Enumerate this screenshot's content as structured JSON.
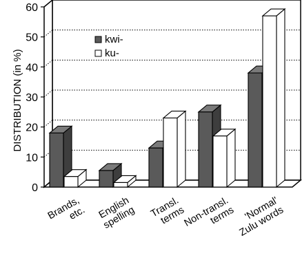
{
  "chart_data": {
    "type": "bar",
    "title": "",
    "ylabel": "DISTRIBUTION (in %)",
    "xlabel": "",
    "ylim": [
      0,
      60
    ],
    "yticks": [
      0,
      10,
      20,
      30,
      40,
      50,
      60
    ],
    "grid": "horizontal dotted",
    "legend_position": "top-left",
    "categories": [
      [
        "Brands,",
        "etc."
      ],
      [
        "English",
        "spelling"
      ],
      [
        "Transl.",
        "terms"
      ],
      [
        "Non-transl.",
        "terms"
      ],
      [
        "'Normal'",
        "Zulu words"
      ]
    ],
    "series": [
      {
        "name": "kwi-",
        "color": "#5a5a5a",
        "values": [
          18,
          5.5,
          13,
          25,
          38
        ]
      },
      {
        "name": "ku-",
        "color": "#ffffff",
        "values": [
          3.5,
          1.5,
          23,
          17,
          57
        ]
      }
    ]
  }
}
